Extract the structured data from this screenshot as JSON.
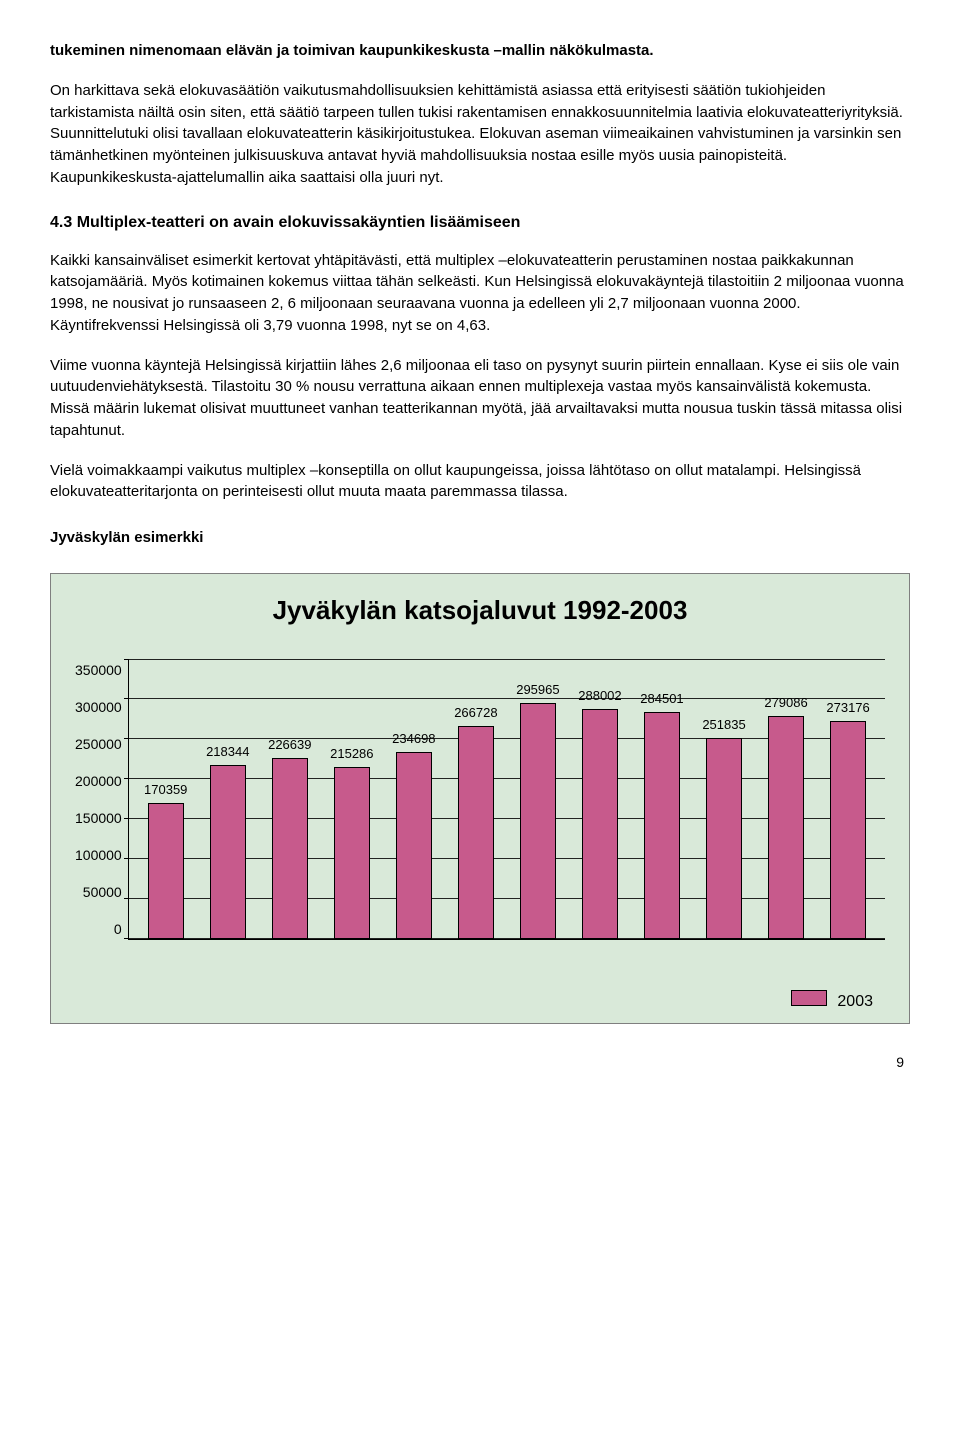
{
  "p1": "tukeminen nimenomaan elävän ja toimivan kaupunkikeskusta –mallin näkökulmasta.",
  "p2": "On harkittava sekä elokuvasäätiön vaikutusmahdollisuuksien kehittämistä asiassa että erityisesti säätiön tukiohjeiden tarkistamista näiltä osin siten, että säätiö tarpeen tullen tukisi rakentamisen ennakkosuunnitelmia laativia elokuvateatteriyrityksiä. Suunnittelutuki olisi tavallaan elokuvateatterin käsikirjoitustukea. Elokuvan aseman viimeaikainen vahvistuminen ja varsinkin sen tämänhetkinen myönteinen julkisuuskuva antavat hyviä mahdollisuuksia nostaa esille myös uusia painopisteitä. Kaupunkikeskusta-ajattelumallin aika saattaisi olla juuri nyt.",
  "heading": "4.3 Multiplex-teatteri on avain elokuvissakäyntien lisäämiseen",
  "p3": "Kaikki kansainväliset esimerkit kertovat yhtäpitävästi, että multiplex –elokuvateatterin perustaminen nostaa paikkakunnan katsojamääriä. Myös kotimainen kokemus viittaa tähän selkeästi. Kun Helsingissä elokuvakäyntejä tilastoitiin 2 miljoonaa vuonna 1998, ne nousivat jo runsaaseen 2, 6 miljoonaan seuraavana vuonna ja edelleen yli 2,7 miljoonaan vuonna 2000. Käyntifrekvenssi Helsingissä oli 3,79 vuonna 1998, nyt se on 4,63.",
  "p4": "Viime vuonna käyntejä Helsingissä kirjattiin lähes 2,6 miljoonaa eli taso on pysynyt suurin piirtein ennallaan. Kyse ei siis ole vain uutuudenviehätyksestä. Tilastoitu 30 % nousu verrattuna aikaan ennen multiplexeja vastaa myös kansainvälistä kokemusta. Missä määrin lukemat olisivat muuttuneet vanhan teatterikannan myötä, jää arvailtavaksi mutta nousua tuskin tässä mitassa olisi tapahtunut.",
  "p5": "Vielä voimakkaampi vaikutus multiplex –konseptilla on ollut kaupungeissa, joissa lähtötaso on ollut matalampi. Helsingissä elokuvateatteritarjonta on perinteisesti ollut muuta maata paremmassa tilassa.",
  "section_label": "Jyväskylän esimerkki",
  "chart": {
    "type": "bar",
    "title": "Jyväkylän katsojaluvut 1992-2003",
    "background_color": "#d9e9d9",
    "bar_color": "#c75a8c",
    "bar_border": "#000000",
    "grid_color": "#000000",
    "ymax": 350000,
    "ytick_step": 50000,
    "yticks": [
      "350000",
      "300000",
      "250000",
      "200000",
      "150000",
      "100000",
      "50000",
      "0"
    ],
    "values": [
      170359,
      218344,
      226639,
      215286,
      234698,
      266728,
      295965,
      288002,
      284501,
      251835,
      279086,
      273176
    ],
    "labels": [
      "170359",
      "218344",
      "226639",
      "215286",
      "234698",
      "266728",
      "295965",
      "288002",
      "284501",
      "251835",
      "279086",
      "273176"
    ],
    "legend_label": "2003",
    "legend_box_color": "#c75a8c"
  },
  "page_number": "9"
}
